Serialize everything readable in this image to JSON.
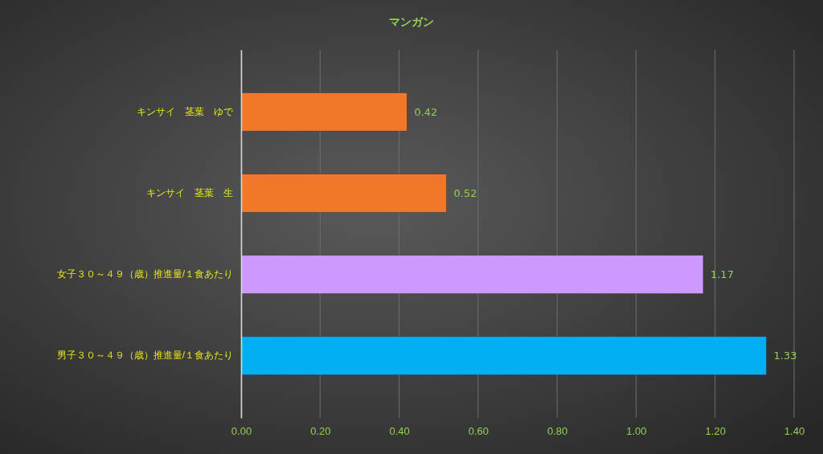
{
  "chart_data": {
    "type": "bar",
    "orientation": "horizontal",
    "title": "マンガン",
    "categories": [
      "キンサイ　茎葉　ゆで",
      "キンサイ　茎葉　生",
      "女子３０～４９（歳）推進量/１食あたり",
      "男子３０～４９（歳）推進量/１食あたり"
    ],
    "values": [
      0.42,
      0.52,
      1.17,
      1.33
    ],
    "colors": [
      "#f07828",
      "#f07828",
      "#cc99ff",
      "#00b0f0"
    ],
    "xlim": [
      0,
      1.4
    ],
    "xticks": [
      {
        "value": 0,
        "label": "0.00"
      },
      {
        "value": 0.2,
        "label": "0.20"
      },
      {
        "value": 0.4,
        "label": "0.40"
      },
      {
        "value": 0.6,
        "label": "0.60"
      },
      {
        "value": 0.8,
        "label": "0.80"
      },
      {
        "value": 1,
        "label": "1.00"
      },
      {
        "value": 1.2,
        "label": "1.20"
      },
      {
        "value": 1.4,
        "label": "1.40"
      }
    ],
    "grid": "x",
    "data_labels": true
  }
}
